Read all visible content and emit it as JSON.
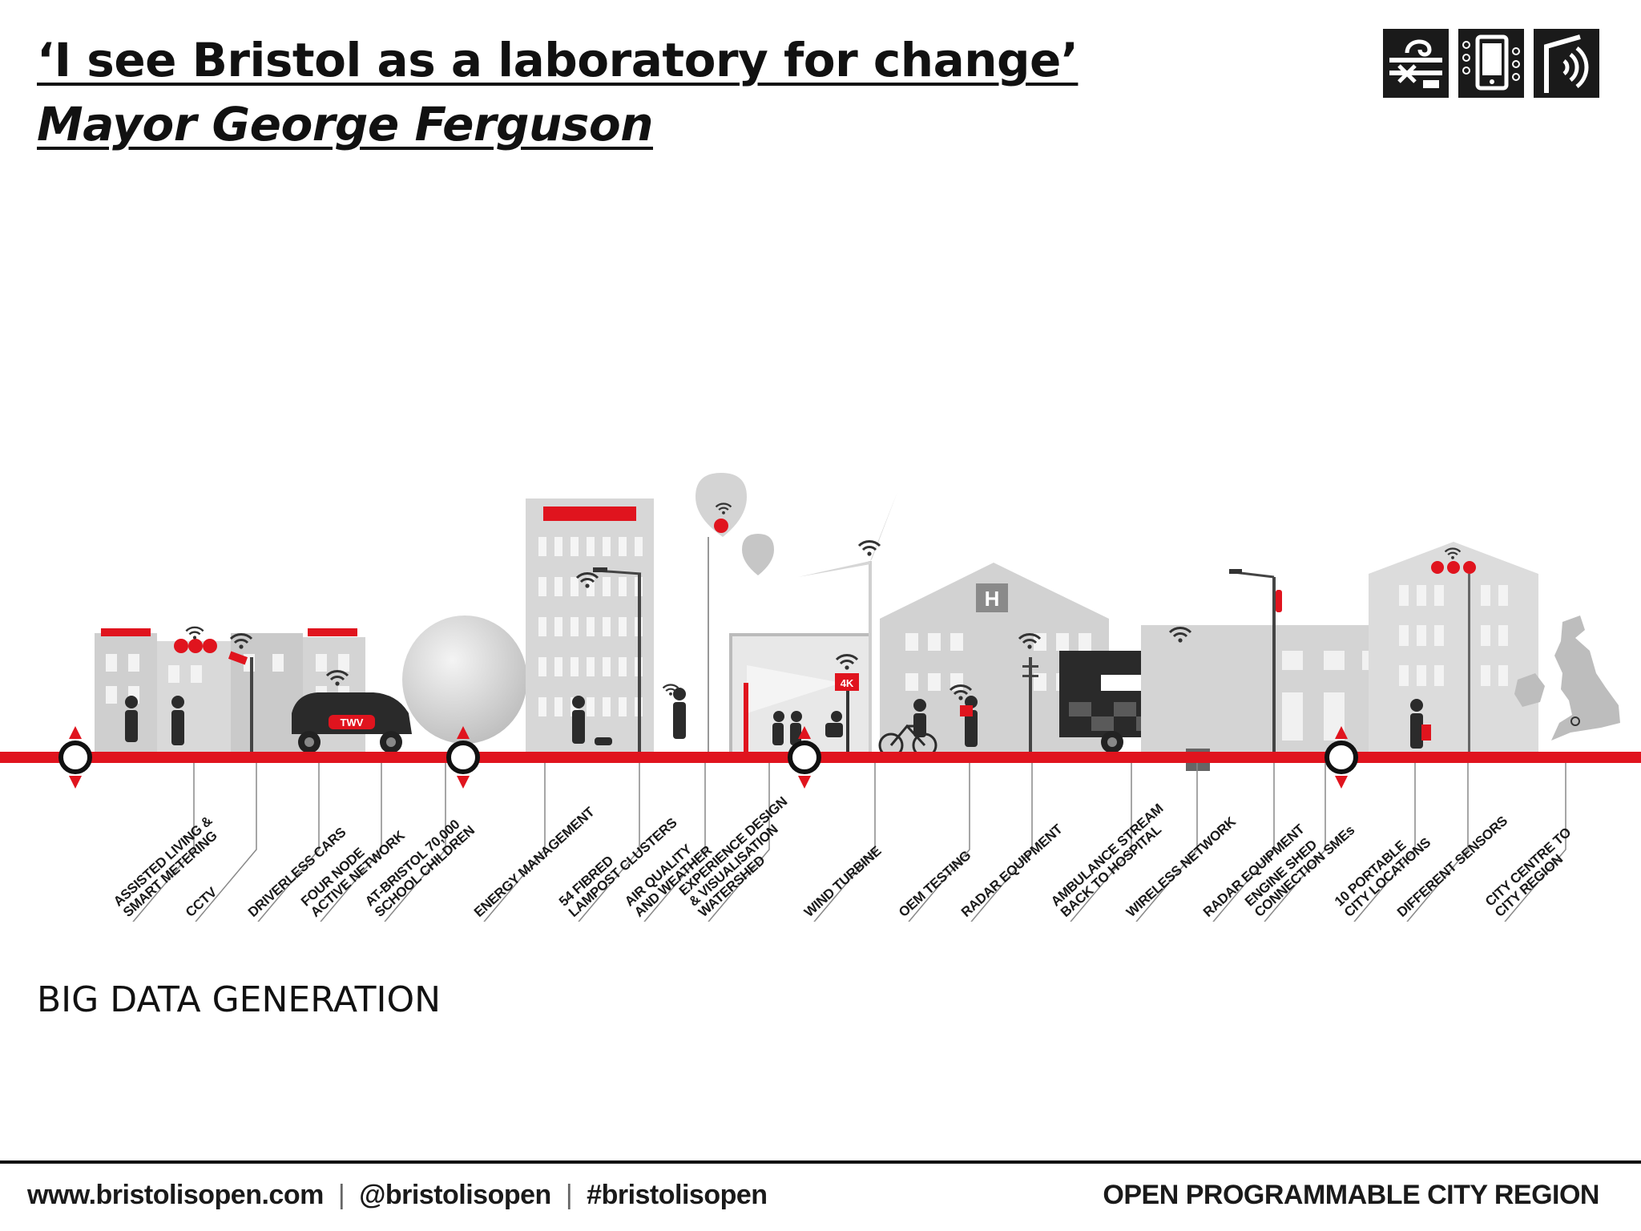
{
  "slide": {
    "title": "‘I see Bristol as a laboratory for change’",
    "subtitle": "Mayor George Ferguson",
    "big_data_label": "BIG DATA GENERATION"
  },
  "footer": {
    "website": "www.bristolisopen.com",
    "twitter": "@bristolisopen",
    "hashtag": "#bristolisopen",
    "tagline": "OPEN PROGRAMMABLE CITY REGION"
  },
  "colors": {
    "brand_red": "#e0141e",
    "dark": "#1a1a1a",
    "grey_building": "#c9c9c9",
    "light_grey": "#e2e2e2"
  },
  "badges": {
    "twv": "TWV",
    "hospital": "H",
    "resolution": "4K"
  },
  "labels": [
    {
      "line1": "ASSISTED LIVING &",
      "line2": "SMART METERING"
    },
    {
      "line1": "CCTV",
      "line2": ""
    },
    {
      "line1": "DRIVERLESS CARS",
      "line2": ""
    },
    {
      "line1": "FOUR NODE",
      "line2": "ACTIVE NETWORK"
    },
    {
      "line1": "AT-BRISTOL 70,000",
      "line2": "SCHOOL CHILDREN"
    },
    {
      "line1": "ENERGY MANAGEMENT",
      "line2": ""
    },
    {
      "line1": "54 FIBRED",
      "line2": "LAMPOST CLUSTERS"
    },
    {
      "line1": "AIR QUALITY",
      "line2": "AND WEATHER"
    },
    {
      "line1": "EXPERIENCE DESIGN",
      "line2": "& VISUALISATION",
      "line3": "WATERSHED"
    },
    {
      "line1": "WIND TURBINE",
      "line2": ""
    },
    {
      "line1": "OEM TESTING",
      "line2": ""
    },
    {
      "line1": "RADAR EQUIPMENT",
      "line2": ""
    },
    {
      "line1": "AMBULANCE STREAM",
      "line2": "BACK TO HOSPITAL"
    },
    {
      "line1": "WIRELESS NETWORK",
      "line2": ""
    },
    {
      "line1": "RADAR EQUIPMENT",
      "line2": ""
    },
    {
      "line1": "ENGINE SHED",
      "line2": "CONNECTION SMEs"
    },
    {
      "line1": "10 PORTABLE",
      "line2": "CITY LOCATIONS"
    },
    {
      "line1": "DIFFERENT SENSORS",
      "line2": ""
    },
    {
      "line1": "CITY CENTRE TO",
      "line2": "CITY REGION"
    }
  ],
  "icons": {
    "logo": [
      "network-rack-icon",
      "smartphone-icon",
      "wireless-signal-icon"
    ],
    "wifi": "wifi-icon",
    "node": "network-node-icon"
  }
}
